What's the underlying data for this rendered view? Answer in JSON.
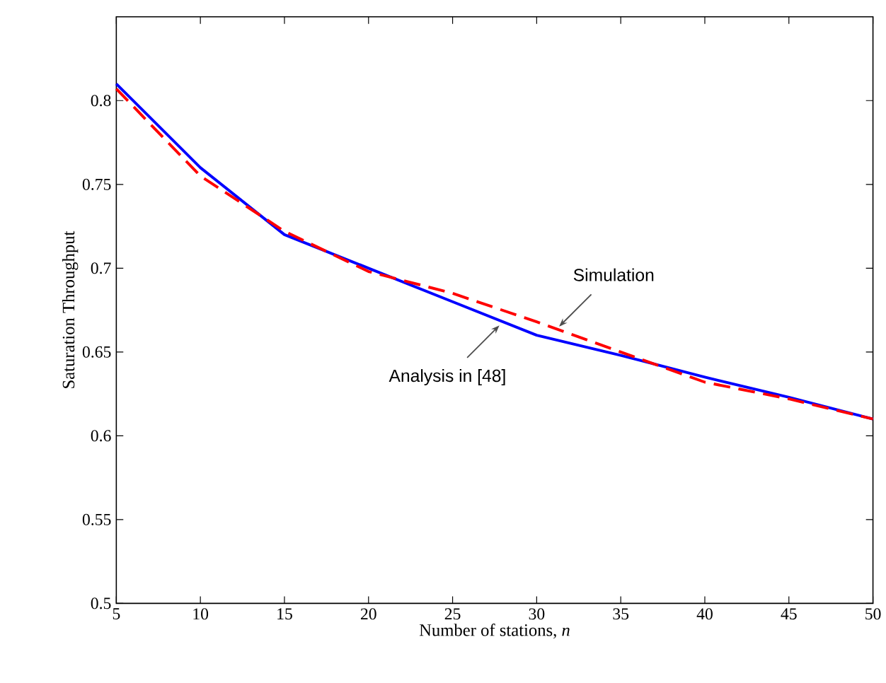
{
  "chart_data": {
    "type": "line",
    "xlabel": "Number of stations, *n*",
    "ylabel": "Saturation Throughput",
    "x": [
      5,
      10,
      15,
      20,
      25,
      30,
      35,
      40,
      45,
      50
    ],
    "series": [
      {
        "color": "#0000ff",
        "line_style": "solid",
        "values": [
          0.81,
          0.76,
          0.72,
          0.7,
          0.68,
          0.66,
          0.648,
          0.635,
          0.623,
          0.61
        ]
      },
      {
        "color": "#ff0000",
        "line_style": "dashed",
        "values": [
          0.807,
          0.755,
          0.722,
          0.698,
          0.685,
          0.668,
          0.65,
          0.632,
          0.622,
          0.61
        ]
      }
    ],
    "xlim": [
      5,
      50
    ],
    "ylim": [
      0.5,
      0.85
    ],
    "xticks": [
      5,
      10,
      15,
      20,
      25,
      30,
      35,
      40,
      45,
      50
    ],
    "yticks": [
      0.5,
      0.55,
      0.6,
      0.65,
      0.7,
      0.75,
      0.8
    ],
    "marker": "none",
    "annotations": [
      {
        "text": "Simulation",
        "x": 31.25,
        "y": 0.666
      },
      {
        "text": "Analysis in [48]",
        "x": 27.7,
        "y": 0.665
      }
    ]
  }
}
